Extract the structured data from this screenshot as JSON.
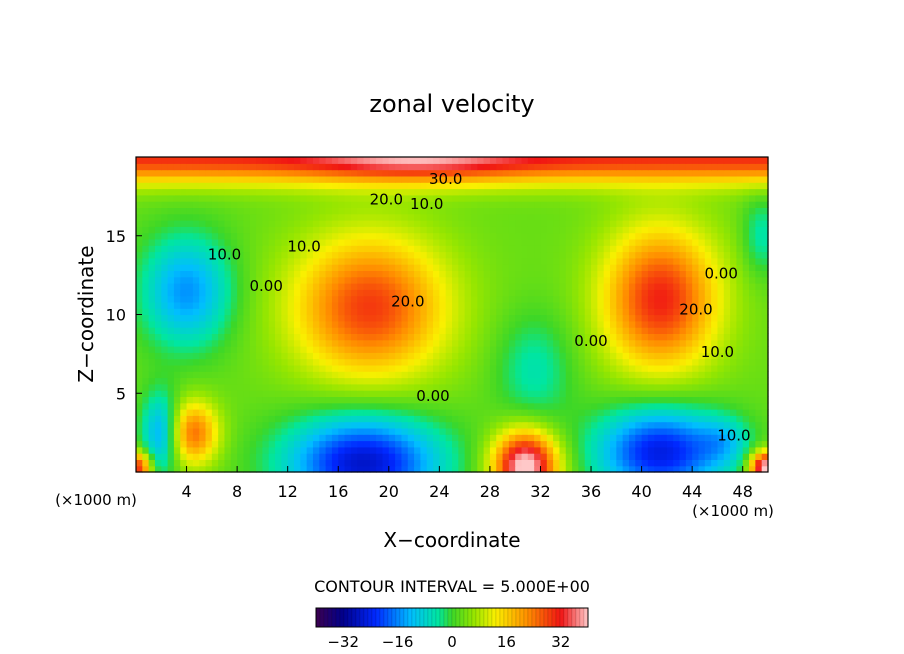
{
  "chart_data": {
    "type": "heatmap",
    "title": "zonal velocity",
    "xlabel": "X−coordinate",
    "ylabel": "Z−coordinate",
    "x_unit_left": "(×1000 m)",
    "x_unit_right": "(×1000 m)",
    "xlim": [
      0,
      50
    ],
    "ylim": [
      0,
      20
    ],
    "x_ticks": [
      "4",
      "8",
      "12",
      "16",
      "20",
      "24",
      "28",
      "32",
      "36",
      "40",
      "44",
      "48"
    ],
    "y_ticks": [
      "5",
      "10",
      "15"
    ],
    "contour_interval_text": "CONTOUR INTERVAL = 5.000E+00",
    "colorbar": {
      "min": -40,
      "max": 40,
      "ticks": [
        "−32",
        "−16",
        "0",
        "16",
        "32"
      ]
    },
    "contour_labels": [
      {
        "text": "30.0",
        "x": 24.5,
        "y": 18.3
      },
      {
        "text": "20.0",
        "x": 19.8,
        "y": 17.0
      },
      {
        "text": "10.0",
        "x": 23.0,
        "y": 16.7
      },
      {
        "text": "10.0",
        "x": 7.0,
        "y": 13.5
      },
      {
        "text": "0.00",
        "x": 10.3,
        "y": 11.5
      },
      {
        "text": "10.0",
        "x": 13.3,
        "y": 14.0
      },
      {
        "text": "20.0",
        "x": 21.5,
        "y": 10.5
      },
      {
        "text": "0.00",
        "x": 23.5,
        "y": 4.5
      },
      {
        "text": "0.00",
        "x": 36.0,
        "y": 8.0
      },
      {
        "text": "20.0",
        "x": 44.3,
        "y": 10.0
      },
      {
        "text": "10.0",
        "x": 46.0,
        "y": 7.3
      },
      {
        "text": "0.00",
        "x": 46.3,
        "y": 12.3
      },
      {
        "text": "10.0",
        "x": 47.3,
        "y": 2.0
      }
    ],
    "features": [
      {
        "x": 18.5,
        "y": 10.5,
        "value": 26,
        "sx": 6.0,
        "sy": 4.5
      },
      {
        "x": 41.5,
        "y": 11.0,
        "value": 28,
        "sx": 4.5,
        "sy": 4.5
      },
      {
        "x": 4.0,
        "y": 11.5,
        "value": -18,
        "sx": 3.5,
        "sy": 3.5
      },
      {
        "x": 31.5,
        "y": 6.5,
        "value": -8,
        "sx": 3.0,
        "sy": 3.5
      },
      {
        "x": 18.0,
        "y": 0.6,
        "value": -30,
        "sx": 6.0,
        "sy": 3.0
      },
      {
        "x": 41.5,
        "y": 1.3,
        "value": -28,
        "sx": 5.0,
        "sy": 2.8
      },
      {
        "x": 30.8,
        "y": 0.4,
        "value": 40,
        "sx": 2.5,
        "sy": 2.2
      },
      {
        "x": 49.8,
        "y": 0.3,
        "value": 40,
        "sx": 1.2,
        "sy": 1.0
      },
      {
        "x": 4.5,
        "y": 2.5,
        "value": 22,
        "sx": 2.0,
        "sy": 2.0
      },
      {
        "x": 0.2,
        "y": 0.3,
        "value": 28,
        "sx": 1.0,
        "sy": 1.0
      },
      {
        "x": 2.0,
        "y": 2.5,
        "value": -18,
        "sx": 1.5,
        "sy": 2.5
      },
      {
        "x": 46.5,
        "y": 2.0,
        "value": -8,
        "sx": 2.0,
        "sy": 1.5
      },
      {
        "x": 49.5,
        "y": 15.0,
        "value": -8,
        "sx": 1.5,
        "sy": 2.5
      }
    ],
    "top_layer": {
      "value_at_top": 30,
      "peak_x": 22.0,
      "peak_value": 40
    }
  }
}
